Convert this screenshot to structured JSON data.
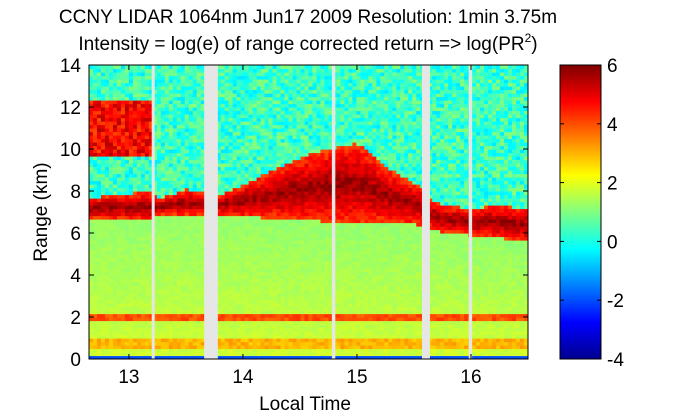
{
  "chart_data": {
    "type": "heatmap",
    "title": {
      "line1": "CCNY LIDAR 1064nm Jun17 2009 Resolution: 1min 3.75m",
      "line2_prefix": "Intensity = log(e) of range corrected return => log(PR",
      "line2_superscript": "2",
      "line2_suffix": ")"
    },
    "xlabel": "Local Time",
    "ylabel": "Range (km)",
    "xlim": [
      12.65,
      16.5
    ],
    "ylim": [
      0,
      14
    ],
    "x_ticks": [
      13,
      14,
      15,
      16
    ],
    "y_ticks": [
      0,
      2,
      4,
      6,
      8,
      10,
      12,
      14
    ],
    "colorbar": {
      "range": [
        -4,
        6
      ],
      "ticks": [
        -4,
        -2,
        0,
        2,
        4,
        6
      ],
      "colormap": "jet",
      "colors": [
        "#00008f",
        "#0000ff",
        "#0080ff",
        "#00ffff",
        "#80ff80",
        "#ffff00",
        "#ff8000",
        "#ff0000",
        "#800000"
      ]
    },
    "data_gaps_local_time": [
      [
        13.2,
        13.22
      ],
      [
        13.66,
        13.78
      ],
      [
        14.78,
        14.81
      ],
      [
        15.57,
        15.64
      ],
      [
        15.98,
        16.01
      ]
    ],
    "structure": {
      "surface_layer": {
        "range_km": [
          0,
          0.12
        ],
        "value": -2
      },
      "near_ground_layer": {
        "range_km": [
          0.5,
          1.0
        ],
        "value": 3
      },
      "aerosol_band_2km": {
        "range_km": [
          1.85,
          2.2
        ],
        "value": 4
      },
      "boundary_layer_fill": {
        "range_km": [
          0.2,
          6.5
        ],
        "value": 1.8
      },
      "cloud_layer": {
        "times": [
          12.65,
          13.2,
          13.25,
          13.5,
          13.78,
          14.0,
          14.3,
          14.6,
          15.0,
          15.3,
          15.57,
          15.64,
          15.8,
          16.0,
          16.2,
          16.5
        ],
        "base_km": [
          6.7,
          6.6,
          6.9,
          6.9,
          6.9,
          6.8,
          6.7,
          6.6,
          6.5,
          6.5,
          6.4,
          6.2,
          6.0,
          5.9,
          5.8,
          5.6
        ],
        "top_km": [
          7.7,
          8.0,
          7.6,
          8.1,
          7.8,
          8.3,
          9.1,
          9.8,
          10.3,
          9.0,
          8.2,
          7.6,
          7.3,
          7.2,
          7.3,
          7.2
        ],
        "value": 5.8
      },
      "high_cloud_early": {
        "time": [
          12.65,
          13.2
        ],
        "range_km": [
          9.6,
          12.4
        ],
        "value": 5.5
      },
      "free_troposphere_value": 0
    }
  }
}
